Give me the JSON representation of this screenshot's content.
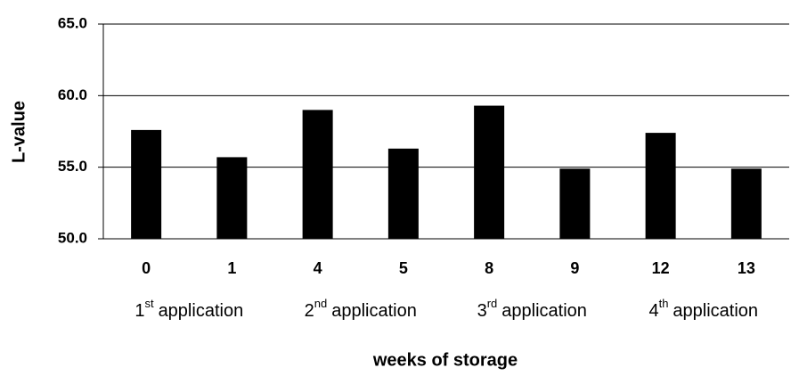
{
  "chart_data": {
    "type": "bar",
    "y_label": "L-value",
    "x_label": "weeks of storage",
    "categories": [
      "0",
      "1",
      "4",
      "5",
      "8",
      "9",
      "12",
      "13"
    ],
    "values": [
      57.6,
      55.7,
      59.0,
      56.3,
      59.3,
      54.9,
      57.4,
      54.9
    ],
    "color": "#000000",
    "ylim": [
      50,
      65
    ],
    "yticks": [
      {
        "value": 50,
        "label": "50.0"
      },
      {
        "value": 55,
        "label": "55.0"
      },
      {
        "value": 60,
        "label": "60.0"
      },
      {
        "value": 65,
        "label": "65.0"
      }
    ],
    "grid": true,
    "group_labels": [
      {
        "number": "1",
        "sup": "st",
        "text": "application"
      },
      {
        "number": "2",
        "sup": "nd",
        "text": "application"
      },
      {
        "number": "3",
        "sup": "rd",
        "text": "application"
      },
      {
        "number": "4",
        "sup": "th",
        "text": "application"
      }
    ]
  }
}
